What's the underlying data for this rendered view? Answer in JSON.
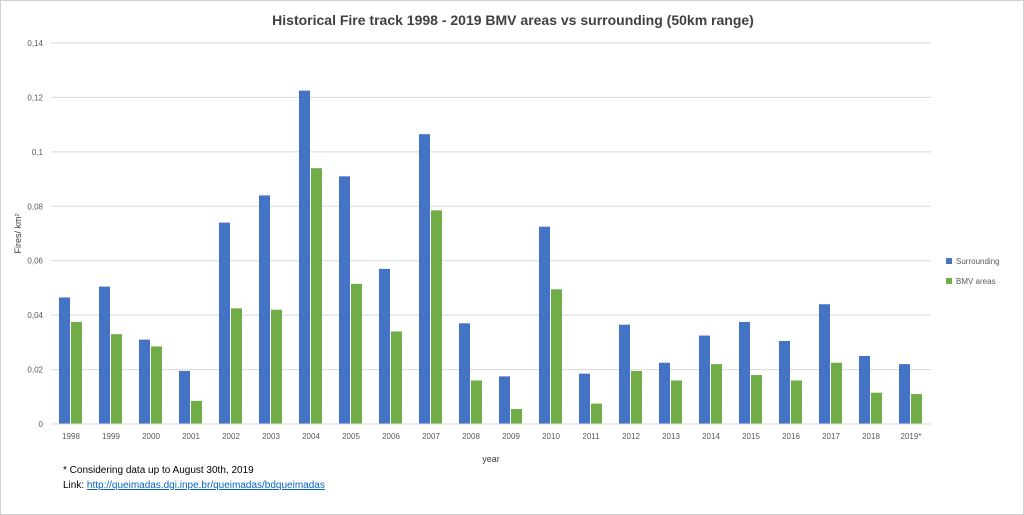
{
  "chart_data": {
    "type": "bar",
    "title": "Historical  Fire track 1998 - 2019 BMV areas vs surrounding  (50km range)",
    "xlabel": "year",
    "ylabel": "Fires/ km²",
    "ylim": [
      0,
      0.14
    ],
    "yticks": [
      "0",
      "0,02",
      "0,04",
      "0,06",
      "0,08",
      "0,1",
      "0,12",
      "0,14"
    ],
    "categories": [
      "1998",
      "1999",
      "2000",
      "2001",
      "2002",
      "2003",
      "2004",
      "2005",
      "2006",
      "2007",
      "2008",
      "2009",
      "2010",
      "2011",
      "2012",
      "2013",
      "2014",
      "2015",
      "2016",
      "2017",
      "2018",
      "2019*"
    ],
    "series": [
      {
        "name": "Surrounding",
        "color": "#4472c4",
        "values": [
          0.0465,
          0.0505,
          0.031,
          0.0195,
          0.074,
          0.084,
          0.1225,
          0.091,
          0.057,
          0.1065,
          0.037,
          0.0175,
          0.0725,
          0.0185,
          0.0365,
          0.0225,
          0.0325,
          0.0375,
          0.0305,
          0.044,
          0.025,
          0.022
        ]
      },
      {
        "name": "BMV areas",
        "color": "#70ad47",
        "values": [
          0.0375,
          0.033,
          0.0285,
          0.0085,
          0.0425,
          0.042,
          0.094,
          0.0515,
          0.034,
          0.0785,
          0.016,
          0.0055,
          0.0495,
          0.0075,
          0.0195,
          0.016,
          0.022,
          0.018,
          0.016,
          0.0225,
          0.0115,
          0.011
        ]
      }
    ],
    "grid": true,
    "legend": "right"
  },
  "footnote": {
    "note": "* Considering data up to August 30th, 2019",
    "link_prefix": "Link: ",
    "link_text": "http://queimadas.dgi.inpe.br/queimadas/bdqueimadas"
  }
}
